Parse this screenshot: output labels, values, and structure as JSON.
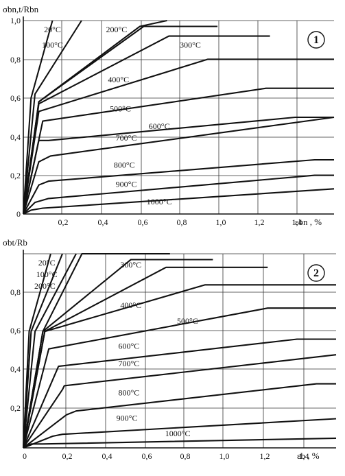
{
  "chart_data": [
    {
      "type": "line",
      "panel_number": "1",
      "ylabel": "σbn,t/Rbn",
      "xlabel": "εbn , %",
      "xlim": [
        0,
        1.6
      ],
      "ylim": [
        0,
        1.0
      ],
      "grid": true,
      "x_ticks": [
        "0,2",
        "0,4",
        "0,6",
        "0,8",
        "1,0",
        "1,2",
        "1,4"
      ],
      "y_ticks": [
        "0",
        "0,2",
        "0,4",
        "0,6",
        "0,8",
        "1,0"
      ],
      "series": [
        {
          "name": "20°C",
          "x": [
            0,
            0.04,
            0.15
          ],
          "y": [
            0,
            0.6,
            1.0
          ]
        },
        {
          "name": "100°C",
          "x": [
            0,
            0.06,
            0.3
          ],
          "y": [
            0,
            0.62,
            1.0
          ]
        },
        {
          "name": "200°C",
          "x": [
            0,
            0.08,
            0.6,
            0.74
          ],
          "y": [
            0,
            0.58,
            0.97,
            1.0
          ]
        },
        {
          "name": "300°C",
          "x": [
            0,
            0.08,
            0.62,
            1.0
          ],
          "y": [
            0,
            0.58,
            0.97,
            0.97
          ]
        },
        {
          "name": "300°C",
          "x": [
            0,
            0.08,
            0.75,
            1.27
          ],
          "y": [
            0,
            0.57,
            0.92,
            0.92
          ]
        },
        {
          "name": "400°C",
          "x": [
            0,
            0.08,
            0.95,
            1.6
          ],
          "y": [
            0,
            0.53,
            0.8,
            0.8
          ]
        },
        {
          "name": "500°C",
          "x": [
            0,
            0.1,
            1.25,
            1.6
          ],
          "y": [
            0,
            0.48,
            0.65,
            0.65
          ]
        },
        {
          "name": "600°C",
          "x": [
            0,
            0.08,
            0.13,
            1.4,
            1.6
          ],
          "y": [
            0,
            0.38,
            0.38,
            0.5,
            0.5
          ]
        },
        {
          "name": "700°C",
          "x": [
            0,
            0.08,
            0.14,
            1.6
          ],
          "y": [
            0,
            0.27,
            0.3,
            0.5
          ]
        },
        {
          "name": "800°C",
          "x": [
            0,
            0.08,
            0.13,
            1.5,
            1.6
          ],
          "y": [
            0,
            0.15,
            0.17,
            0.28,
            0.28
          ]
        },
        {
          "name": "900°C",
          "x": [
            0,
            0.06,
            0.13,
            1.5,
            1.6
          ],
          "y": [
            0,
            0.06,
            0.08,
            0.2,
            0.2
          ]
        },
        {
          "name": "1000°C",
          "x": [
            0,
            0.04,
            0.1,
            1.6
          ],
          "y": [
            0,
            0.02,
            0.03,
            0.13
          ]
        }
      ],
      "labels": [
        {
          "text": "20°C",
          "x": 0.15,
          "y": 0.94
        },
        {
          "text": "100°C",
          "x": 0.15,
          "y": 0.86
        },
        {
          "text": "200°C",
          "x": 0.48,
          "y": 0.94
        },
        {
          "text": "300°C",
          "x": 0.86,
          "y": 0.86
        },
        {
          "text": "400°C",
          "x": 0.49,
          "y": 0.68
        },
        {
          "text": "500°C",
          "x": 0.5,
          "y": 0.53
        },
        {
          "text": "600°C",
          "x": 0.7,
          "y": 0.44
        },
        {
          "text": "700°C",
          "x": 0.53,
          "y": 0.38
        },
        {
          "text": "800°C",
          "x": 0.52,
          "y": 0.24
        },
        {
          "text": "900°C",
          "x": 0.53,
          "y": 0.14
        },
        {
          "text": "1000°C",
          "x": 0.7,
          "y": 0.05
        }
      ]
    },
    {
      "type": "line",
      "panel_number": "2",
      "ylabel": "σbt/Rb",
      "xlabel": "εb , %",
      "xlim": [
        0,
        1.6
      ],
      "ylim": [
        0,
        1.0
      ],
      "grid": true,
      "x_ticks": [
        "0",
        "0,2",
        "0,4",
        "0,6",
        "0,8",
        "1,0",
        "1,2",
        "1,4"
      ],
      "y_ticks": [
        "0,2",
        "0,4",
        "0,6",
        "0,8"
      ],
      "series": [
        {
          "name": "20°C",
          "x": [
            0,
            0.03,
            0.14
          ],
          "y": [
            0,
            0.6,
            1.0
          ]
        },
        {
          "name": "100°C",
          "x": [
            0,
            0.04,
            0.2
          ],
          "y": [
            0,
            0.6,
            1.0
          ]
        },
        {
          "name": "200°C",
          "x": [
            0,
            0.06,
            0.27
          ],
          "y": [
            0,
            0.6,
            1.0
          ]
        },
        {
          "name": "",
          "x": [
            0,
            0.1,
            0.3,
            0.75
          ],
          "y": [
            0,
            0.6,
            1.0,
            1.0
          ]
        },
        {
          "name": "300°C",
          "x": [
            0,
            0.1,
            0.55,
            0.97
          ],
          "y": [
            0,
            0.6,
            0.97,
            0.97
          ]
        },
        {
          "name": "300°C",
          "x": [
            0,
            0.11,
            0.73,
            1.25
          ],
          "y": [
            0,
            0.6,
            0.93,
            0.93
          ]
        },
        {
          "name": "400°C",
          "x": [
            0,
            0.11,
            0.93,
            1.6
          ],
          "y": [
            0,
            0.6,
            0.84,
            0.84
          ]
        },
        {
          "name": "500°C",
          "x": [
            0,
            0.13,
            1.25,
            1.6
          ],
          "y": [
            0,
            0.51,
            0.72,
            0.72
          ]
        },
        {
          "name": "600°C",
          "x": [
            0,
            0.18,
            1.4,
            1.6
          ],
          "y": [
            0,
            0.42,
            0.56,
            0.56
          ]
        },
        {
          "name": "700°C",
          "x": [
            0,
            0.2,
            0.21,
            1.6
          ],
          "y": [
            0,
            0.3,
            0.32,
            0.48
          ]
        },
        {
          "name": "800°C",
          "x": [
            0,
            0.22,
            0.27,
            1.5,
            1.6
          ],
          "y": [
            0,
            0.17,
            0.19,
            0.33,
            0.33
          ]
        },
        {
          "name": "900°C",
          "x": [
            0,
            0.15,
            0.2,
            1.6
          ],
          "y": [
            0,
            0.06,
            0.07,
            0.15
          ]
        },
        {
          "name": "1000°C",
          "x": [
            0,
            0.04,
            0.1,
            1.6
          ],
          "y": [
            0,
            0.02,
            0.02,
            0.05
          ]
        }
      ],
      "labels": [
        {
          "text": "20°C",
          "x": 0.12,
          "y": 0.94
        },
        {
          "text": "100°C",
          "x": 0.12,
          "y": 0.88
        },
        {
          "text": "200°C",
          "x": 0.11,
          "y": 0.82
        },
        {
          "text": "300°C",
          "x": 0.55,
          "y": 0.93
        },
        {
          "text": "400°C",
          "x": 0.55,
          "y": 0.72
        },
        {
          "text": "500°C",
          "x": 0.84,
          "y": 0.64
        },
        {
          "text": "600°C",
          "x": 0.54,
          "y": 0.51
        },
        {
          "text": "700°C",
          "x": 0.54,
          "y": 0.42
        },
        {
          "text": "800°C",
          "x": 0.54,
          "y": 0.27
        },
        {
          "text": "900°C",
          "x": 0.53,
          "y": 0.14
        },
        {
          "text": "1000°C",
          "x": 0.79,
          "y": 0.06
        }
      ]
    }
  ]
}
